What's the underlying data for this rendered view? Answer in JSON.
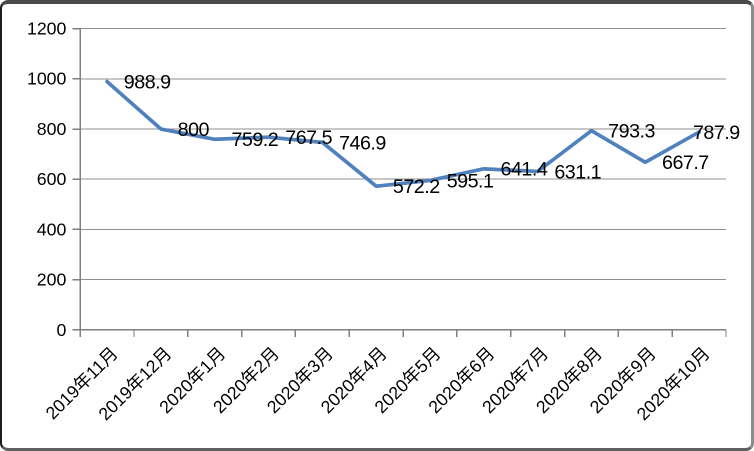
{
  "chart_data": {
    "type": "line",
    "title": "",
    "categories": [
      "2019年11月",
      "2019年12月",
      "2020年1月",
      "2020年2月",
      "2020年3月",
      "2020年4月",
      "2020年5月",
      "2020年6月",
      "2020年7月",
      "2020年8月",
      "2020年9月",
      "2020年10月"
    ],
    "series": [
      {
        "name": "",
        "values": [
          988.9,
          800,
          759.2,
          767.5,
          746.9,
          572.2,
          595.1,
          641.4,
          631.1,
          793.3,
          667.7,
          787.9
        ]
      }
    ],
    "data_labels": [
      "988.9",
      "800",
      "759.2",
      "767.5",
      "746.9",
      "572.2",
      "595.1",
      "641.4",
      "631.1",
      "793.3",
      "667.7",
      "787.9"
    ],
    "xlabel": "",
    "ylabel": "",
    "y_axis": {
      "min": 0,
      "max": 1200,
      "step": 200,
      "tick_labels": [
        "0",
        "200",
        "400",
        "600",
        "800",
        "1000",
        "1200"
      ]
    },
    "grid": true,
    "legend_position": "none",
    "line_color": "#4F81BD",
    "gridline_color": "#8F8F8F",
    "axis_color": "#7F7F7F",
    "label_color": "#000000",
    "background_color": "#FFFFFF"
  }
}
